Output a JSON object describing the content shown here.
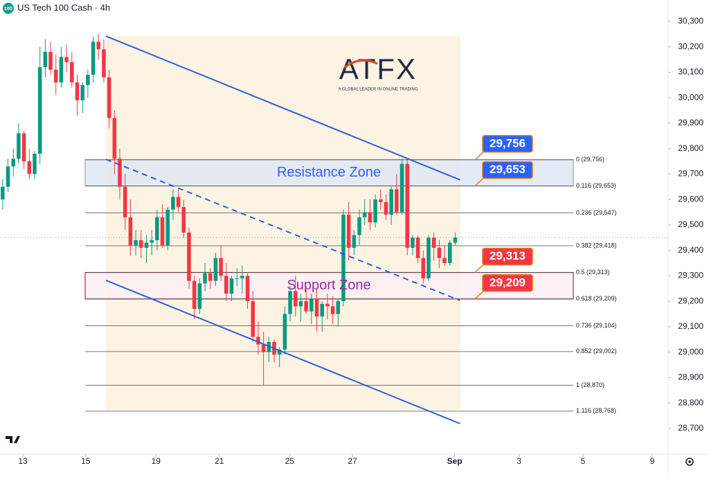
{
  "chart_data": {
    "type": "candlestick",
    "title": "US Tech 100 Cash · 4h",
    "symbol_badge": "100",
    "watermark": {
      "brand": "ATFX",
      "tagline": "A GLOBAL LEADER IN ONLINE TRADING"
    },
    "up_color": "#089981",
    "down_color": "#f23645",
    "ohlc": [
      [
        29600,
        29680,
        29560,
        29650
      ],
      [
        29650,
        29760,
        29630,
        29730
      ],
      [
        29730,
        29800,
        29690,
        29760
      ],
      [
        29760,
        29900,
        29740,
        29860
      ],
      [
        29860,
        29870,
        29720,
        29750
      ],
      [
        29750,
        29800,
        29680,
        29700
      ],
      [
        29700,
        29790,
        29680,
        29780
      ],
      [
        29780,
        30200,
        29740,
        30120
      ],
      [
        30120,
        30230,
        30080,
        30180
      ],
      [
        30180,
        30220,
        30090,
        30110
      ],
      [
        30110,
        30170,
        30010,
        30060
      ],
      [
        30060,
        30200,
        30040,
        30160
      ],
      [
        30160,
        30210,
        30100,
        30140
      ],
      [
        30140,
        30180,
        30040,
        30060
      ],
      [
        30060,
        30090,
        29930,
        29990
      ],
      [
        29990,
        30060,
        29940,
        30050
      ],
      [
        30050,
        30110,
        30000,
        30090
      ],
      [
        30090,
        30240,
        30060,
        30220
      ],
      [
        30220,
        30250,
        30150,
        30190
      ],
      [
        30190,
        30230,
        30060,
        30080
      ],
      [
        30080,
        30110,
        29880,
        29920
      ],
      [
        29920,
        29950,
        29700,
        29760
      ],
      [
        29760,
        29800,
        29600,
        29650
      ],
      [
        29650,
        29700,
        29480,
        29530
      ],
      [
        29530,
        29600,
        29380,
        29420
      ],
      [
        29420,
        29480,
        29380,
        29440
      ],
      [
        29440,
        29480,
        29370,
        29410
      ],
      [
        29410,
        29460,
        29350,
        29430
      ],
      [
        29430,
        29480,
        29380,
        29440
      ],
      [
        29440,
        29560,
        29400,
        29530
      ],
      [
        29530,
        29580,
        29410,
        29420
      ],
      [
        29420,
        29570,
        29400,
        29560
      ],
      [
        29560,
        29640,
        29520,
        29610
      ],
      [
        29610,
        29640,
        29550,
        29570
      ],
      [
        29570,
        29600,
        29450,
        29470
      ],
      [
        29470,
        29490,
        29250,
        29280
      ],
      [
        29280,
        29300,
        29130,
        29170
      ],
      [
        29170,
        29290,
        29150,
        29270
      ],
      [
        29270,
        29350,
        29240,
        29310
      ],
      [
        29310,
        29330,
        29250,
        29280
      ],
      [
        29280,
        29390,
        29260,
        29370
      ],
      [
        29370,
        29420,
        29280,
        29300
      ],
      [
        29300,
        29350,
        29200,
        29230
      ],
      [
        29230,
        29300,
        29200,
        29290
      ],
      [
        29290,
        29330,
        29260,
        29290
      ],
      [
        29290,
        29340,
        29230,
        29300
      ],
      [
        29300,
        29310,
        29170,
        29200
      ],
      [
        29200,
        29240,
        29040,
        29060
      ],
      [
        29060,
        29120,
        28990,
        29030
      ],
      [
        29030,
        29080,
        28870,
        29000
      ],
      [
        29000,
        29060,
        28960,
        29040
      ],
      [
        29040,
        29050,
        28960,
        28990
      ],
      [
        28990,
        29020,
        28940,
        29010
      ],
      [
        29010,
        29180,
        28990,
        29150
      ],
      [
        29150,
        29260,
        29120,
        29240
      ],
      [
        29240,
        29300,
        29140,
        29180
      ],
      [
        29180,
        29230,
        29120,
        29200
      ],
      [
        29200,
        29260,
        29150,
        29160
      ],
      [
        29160,
        29230,
        29110,
        29210
      ],
      [
        29210,
        29250,
        29080,
        29140
      ],
      [
        29140,
        29200,
        29080,
        29190
      ],
      [
        29190,
        29230,
        29130,
        29180
      ],
      [
        29180,
        29220,
        29110,
        29150
      ],
      [
        29150,
        29210,
        29100,
        29200
      ],
      [
        29200,
        29560,
        29180,
        29540
      ],
      [
        29540,
        29590,
        29360,
        29410
      ],
      [
        29410,
        29480,
        29380,
        29460
      ],
      [
        29460,
        29560,
        29420,
        29530
      ],
      [
        29530,
        29600,
        29500,
        29550
      ],
      [
        29550,
        29600,
        29480,
        29510
      ],
      [
        29510,
        29620,
        29490,
        29600
      ],
      [
        29600,
        29640,
        29560,
        29590
      ],
      [
        29590,
        29620,
        29520,
        29540
      ],
      [
        29540,
        29650,
        29500,
        29640
      ],
      [
        29640,
        29700,
        29540,
        29550
      ],
      [
        29550,
        29760,
        29540,
        29740
      ],
      [
        29740,
        29760,
        29380,
        29410
      ],
      [
        29410,
        29460,
        29380,
        29450
      ],
      [
        29450,
        29460,
        29350,
        29370
      ],
      [
        29370,
        29400,
        29270,
        29290
      ],
      [
        29290,
        29460,
        29280,
        29450
      ],
      [
        29450,
        29470,
        29360,
        29410
      ],
      [
        29410,
        29440,
        29330,
        29370
      ],
      [
        29370,
        29420,
        29340,
        29350
      ],
      [
        29350,
        29440,
        29340,
        29430
      ],
      [
        29430,
        29470,
        29420,
        29450
      ]
    ],
    "xlim": [
      -0.5,
      125
    ],
    "xticks": [
      {
        "value": 3.8,
        "label": "13"
      },
      {
        "value": 15.6,
        "label": "15"
      },
      {
        "value": 28.8,
        "label": "19"
      },
      {
        "value": 40.7,
        "label": "21"
      },
      {
        "value": 53.9,
        "label": "25"
      },
      {
        "value": 65.7,
        "label": "27"
      },
      {
        "value": 84.9,
        "label": "Sep"
      },
      {
        "value": 97,
        "label": "3"
      },
      {
        "value": 109,
        "label": "5"
      },
      {
        "value": 122,
        "label": "9"
      }
    ],
    "ylim": [
      28600,
      30384
    ],
    "yticks": [
      {
        "value": 28700,
        "label": "28,700"
      },
      {
        "value": 28800,
        "label": "28,800"
      },
      {
        "value": 28900,
        "label": "28,900"
      },
      {
        "value": 29000,
        "label": "29,000"
      },
      {
        "value": 29100,
        "label": "29,100"
      },
      {
        "value": 29200,
        "label": "29,200"
      },
      {
        "value": 29300,
        "label": "29,300"
      },
      {
        "value": 29400,
        "label": "29,400"
      },
      {
        "value": 29500,
        "label": "29,500"
      },
      {
        "value": 29600,
        "label": "29,600"
      },
      {
        "value": 29700,
        "label": "29,700"
      },
      {
        "value": 29800,
        "label": "29,800"
      },
      {
        "value": 29900,
        "label": "29,900"
      },
      {
        "value": 30000,
        "label": "30,000"
      },
      {
        "value": 30100,
        "label": "30,100"
      },
      {
        "value": 30200,
        "label": "30,200"
      },
      {
        "value": 30300,
        "label": "30,300"
      }
    ],
    "fib_levels": [
      {
        "value": 29756,
        "label": "0 (29,756)"
      },
      {
        "value": 29653,
        "label": "0.116 (29,653)"
      },
      {
        "value": 29547,
        "label": "0.236 (29,547)"
      },
      {
        "value": 29418,
        "label": "0.382 (29,418)"
      },
      {
        "value": 29313,
        "label": "0.5 (29,313)"
      },
      {
        "value": 29209,
        "label": "0.618 (29,209)"
      },
      {
        "value": 29104,
        "label": "0.736 (29,104)"
      },
      {
        "value": 29002,
        "label": "0.852 (29,002)"
      },
      {
        "value": 28870,
        "label": "1 (28,870)"
      },
      {
        "value": 28768,
        "label": "1.116 (28,768)"
      }
    ],
    "zones": [
      {
        "label": "Resistance Zone",
        "from": 29653,
        "to": 29756,
        "color": "#2962ff",
        "fill": "#dfe6f5",
        "border": "#9aa3b5"
      },
      {
        "label": "Support Zone",
        "from": 29209,
        "to": 29313,
        "color": "#9c27b0",
        "fill": "#fbeef2",
        "border": "#c2185b"
      }
    ],
    "price_labels": [
      {
        "value": 29756,
        "label": "29,756",
        "color": "#2962ff"
      },
      {
        "value": 29653,
        "label": "29,653",
        "color": "#2962ff"
      },
      {
        "value": 29313,
        "label": "29,313",
        "color": "#f23645"
      },
      {
        "value": 29209,
        "label": "29,209",
        "color": "#f23645"
      }
    ],
    "trendlines": [
      {
        "points": [
          [
            19.4,
            30242
          ],
          [
            85.9,
            29677
          ]
        ],
        "dashed": false,
        "color": "#2f5fd8"
      },
      {
        "points": [
          [
            19.4,
            29282
          ],
          [
            85.9,
            28719
          ]
        ],
        "dashed": false,
        "color": "#2f5fd8"
      },
      {
        "points": [
          [
            19.4,
            29758
          ],
          [
            85.9,
            29203
          ]
        ],
        "dashed": true,
        "color": "#2f5fd8"
      }
    ]
  }
}
